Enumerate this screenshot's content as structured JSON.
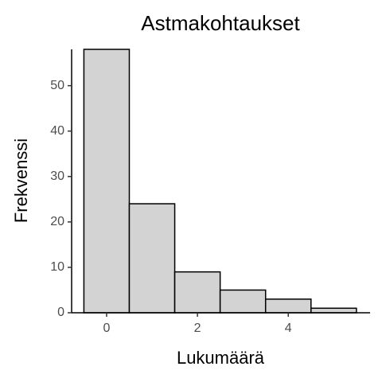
{
  "chart_data": {
    "type": "histogram",
    "title": "Astmakohtaukset",
    "x_label": "Lukumäärä",
    "y_label": "Frekvenssi",
    "bins": [
      -0.5,
      0.5,
      1.5,
      2.5,
      3.5,
      4.5,
      5.5
    ],
    "values": [
      58,
      24,
      9,
      5,
      3,
      1
    ],
    "color": "#d3d3d3",
    "edgecolor": "#000000",
    "xlim": [
      -0.77,
      5.8
    ],
    "xticks": [
      0,
      2,
      4
    ],
    "ylim": [
      0,
      58
    ],
    "yticks": [
      0,
      10,
      20,
      30,
      40,
      50
    ],
    "grid": false
  }
}
